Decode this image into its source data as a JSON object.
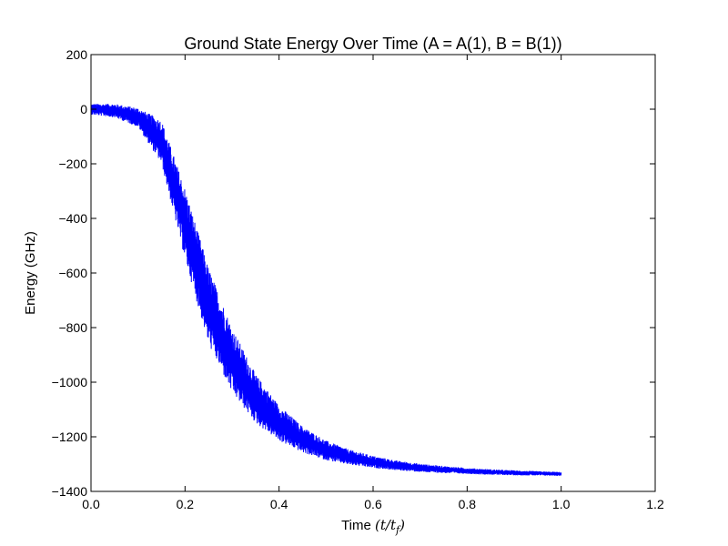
{
  "chart_data": {
    "type": "line",
    "title": "Ground State Energy Over Time (A = A(1), B = B(1))",
    "xlabel": "Time",
    "xlabel_math": "(t/t",
    "xlabel_math_sub": "f",
    "xlabel_math_close": ")",
    "ylabel": "Energy (GHz)",
    "xlim": [
      0.0,
      1.2
    ],
    "ylim": [
      -1400,
      200
    ],
    "xticks": [
      0.0,
      0.2,
      0.4,
      0.6,
      0.8,
      1.0,
      1.2
    ],
    "xtick_labels": [
      "0.0",
      "0.2",
      "0.4",
      "0.6",
      "0.8",
      "1.0",
      "1.2"
    ],
    "yticks": [
      200,
      0,
      -200,
      -400,
      -600,
      -800,
      -1000,
      -1200,
      -1400
    ],
    "ytick_labels": [
      "200",
      "0",
      "−200",
      "−400",
      "−600",
      "−800",
      "−1000",
      "−1200",
      "−1400"
    ],
    "grid": false,
    "legend": "none",
    "series": [
      {
        "color": "#0000ff",
        "x": [
          0.0,
          0.05,
          0.1,
          0.15,
          0.2,
          0.25,
          0.3,
          0.35,
          0.4,
          0.45,
          0.5,
          0.55,
          0.6,
          0.65,
          0.7,
          0.75,
          0.8,
          0.85,
          0.9,
          0.95,
          1.0
        ],
        "y": [
          0,
          -5,
          -30,
          -120,
          -420,
          -720,
          -920,
          -1060,
          -1150,
          -1210,
          -1250,
          -1275,
          -1292,
          -1305,
          -1314,
          -1320,
          -1325,
          -1329,
          -1332,
          -1334,
          -1336
        ],
        "band_halfwidth": [
          20,
          25,
          35,
          80,
          130,
          140,
          120,
          90,
          65,
          48,
          36,
          28,
          22,
          18,
          15,
          13,
          11,
          10,
          9,
          8,
          7
        ]
      }
    ]
  }
}
